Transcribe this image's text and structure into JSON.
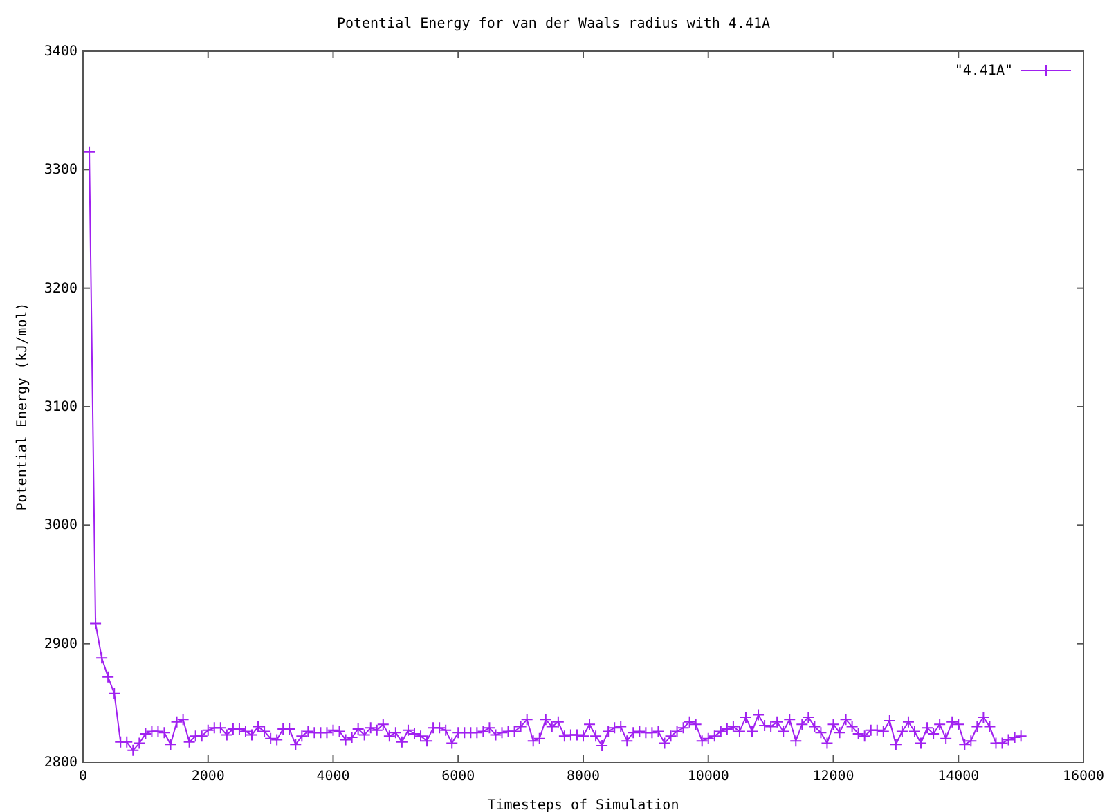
{
  "chart_data": {
    "type": "line",
    "title": "Potential Energy for van der Waals radius with 4.41A",
    "xlabel": "Timesteps of Simulation",
    "ylabel": "Potential Energy (kJ/mol)",
    "xlim": [
      0,
      16000
    ],
    "ylim": [
      2800,
      3400
    ],
    "xticks": [
      0,
      2000,
      4000,
      6000,
      8000,
      10000,
      12000,
      14000,
      16000
    ],
    "yticks": [
      2800,
      2900,
      3000,
      3100,
      3200,
      3300,
      3400
    ],
    "legend": "top right",
    "marker": "cross",
    "grid": false,
    "x": [
      100,
      200,
      300,
      400,
      500,
      600,
      700,
      800,
      900,
      1000,
      1100,
      1200,
      1300,
      1400,
      1500,
      1600,
      1700,
      1800,
      1900,
      2000,
      2100,
      2200,
      2300,
      2400,
      2500,
      2600,
      2700,
      2800,
      2900,
      3000,
      3100,
      3200,
      3300,
      3400,
      3500,
      3600,
      3700,
      3800,
      3900,
      4000,
      4100,
      4200,
      4300,
      4400,
      4500,
      4600,
      4700,
      4800,
      4900,
      5000,
      5100,
      5200,
      5300,
      5400,
      5500,
      5600,
      5700,
      5800,
      5900,
      6000,
      6100,
      6200,
      6300,
      6400,
      6500,
      6600,
      6700,
      6800,
      6900,
      7000,
      7100,
      7200,
      7300,
      7400,
      7500,
      7600,
      7700,
      7800,
      7900,
      8000,
      8100,
      8200,
      8300,
      8400,
      8500,
      8600,
      8700,
      8800,
      8900,
      9000,
      9100,
      9200,
      9300,
      9400,
      9500,
      9600,
      9700,
      9800,
      9900,
      10000,
      10100,
      10200,
      10300,
      10400,
      10500,
      10600,
      10700,
      10800,
      10900,
      11000,
      11100,
      11200,
      11300,
      11400,
      11500,
      11600,
      11700,
      11800,
      11900,
      12000,
      12100,
      12200,
      12300,
      12400,
      12500,
      12600,
      12700,
      12800,
      12900,
      13000,
      13100,
      13200,
      13300,
      13400,
      13500,
      13600,
      13700,
      13800,
      13900,
      14000,
      14100,
      14200,
      14300,
      14400,
      14500,
      14600,
      14700,
      14800,
      14900,
      15000
    ],
    "series": [
      {
        "name": "\"4.41A\"",
        "color": "#a020f0",
        "values": [
          3315,
          2917,
          2888,
          2872,
          2858,
          2817,
          2817,
          2810,
          2816,
          2824,
          2826,
          2826,
          2825,
          2815,
          2834,
          2836,
          2817,
          2822,
          2822,
          2827,
          2829,
          2829,
          2823,
          2828,
          2828,
          2826,
          2823,
          2830,
          2826,
          2820,
          2819,
          2828,
          2828,
          2815,
          2822,
          2826,
          2825,
          2825,
          2825,
          2827,
          2826,
          2819,
          2821,
          2828,
          2823,
          2829,
          2827,
          2832,
          2822,
          2825,
          2817,
          2827,
          2824,
          2822,
          2818,
          2829,
          2829,
          2827,
          2816,
          2825,
          2825,
          2825,
          2825,
          2826,
          2829,
          2823,
          2825,
          2826,
          2826,
          2830,
          2836,
          2818,
          2820,
          2836,
          2830,
          2834,
          2822,
          2823,
          2823,
          2822,
          2832,
          2822,
          2814,
          2826,
          2829,
          2830,
          2818,
          2825,
          2826,
          2825,
          2825,
          2826,
          2816,
          2822,
          2826,
          2829,
          2834,
          2832,
          2818,
          2820,
          2822,
          2826,
          2828,
          2830,
          2826,
          2838,
          2826,
          2840,
          2831,
          2830,
          2834,
          2826,
          2836,
          2818,
          2832,
          2838,
          2830,
          2825,
          2816,
          2832,
          2825,
          2836,
          2830,
          2824,
          2822,
          2827,
          2827,
          2826,
          2835,
          2815,
          2826,
          2834,
          2826,
          2816,
          2829,
          2824,
          2832,
          2820,
          2834,
          2832,
          2815,
          2818,
          2830,
          2838,
          2830,
          2816,
          2816,
          2819,
          2821,
          2822
        ]
      }
    ]
  }
}
